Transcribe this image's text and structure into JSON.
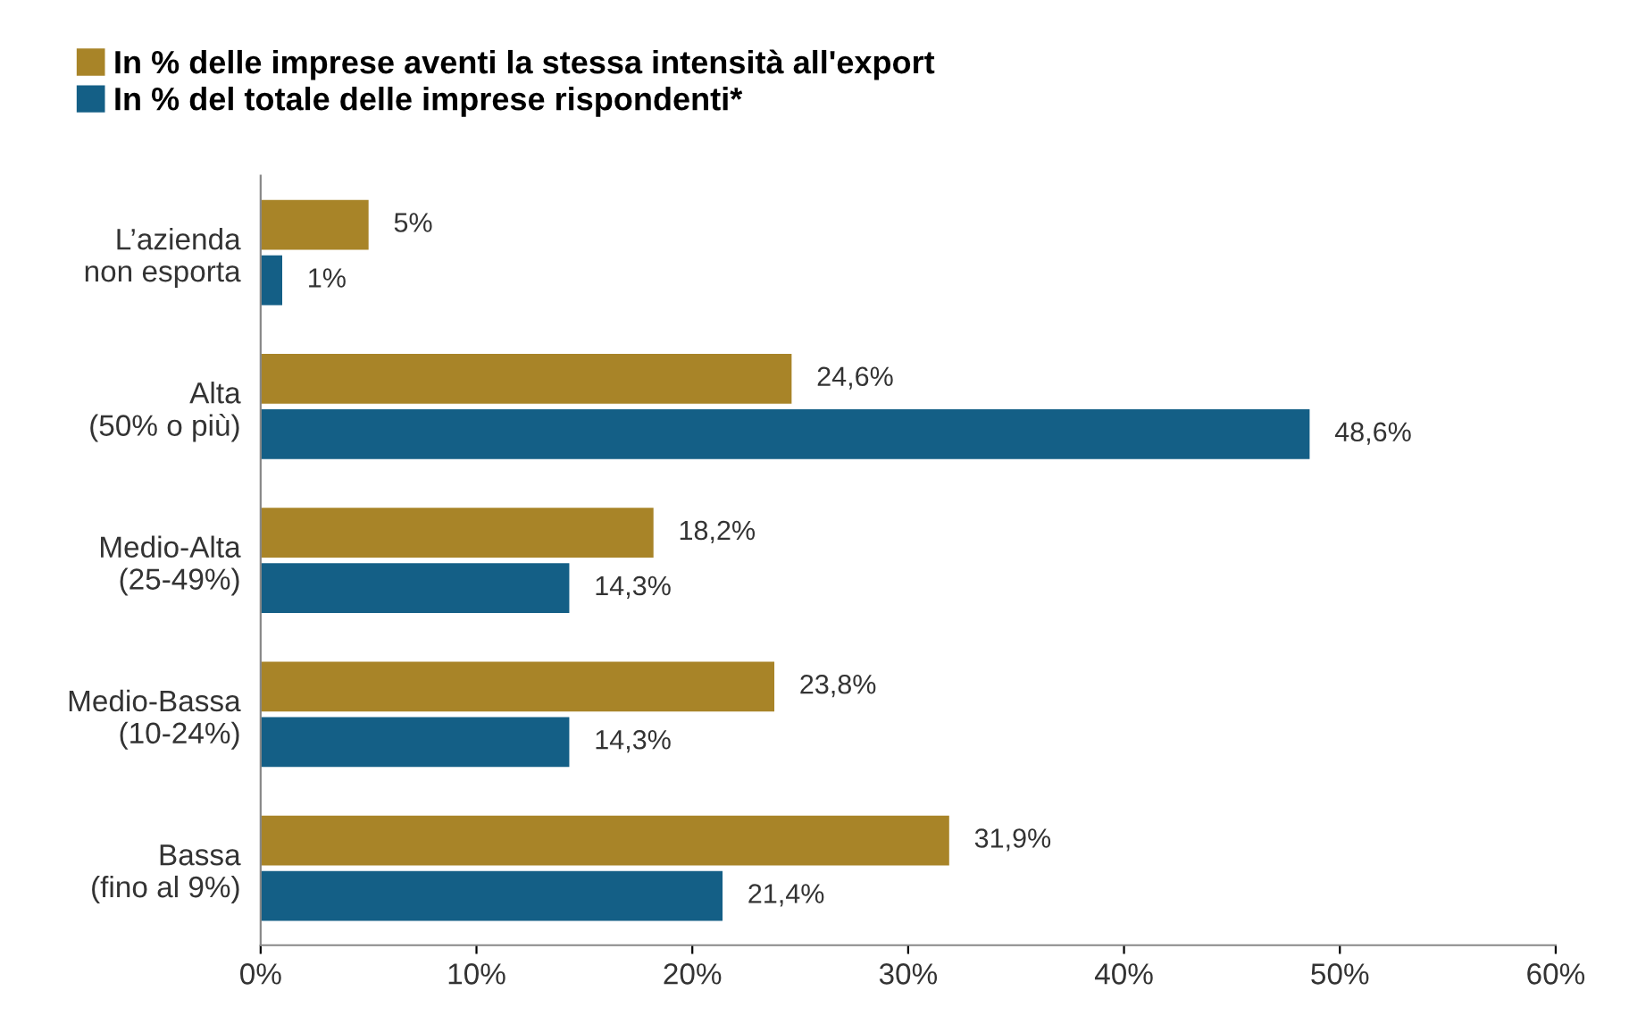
{
  "chart_data": {
    "type": "bar",
    "orientation": "horizontal",
    "categories": [
      "L’azienda\nnon esporta",
      "Alta\n(50% o più)",
      "Medio-Alta\n(25-49%)",
      "Medio-Bassa\n(10-24%)",
      "Bassa\n(fino al 9%)"
    ],
    "series": [
      {
        "name": "In % delle imprese aventi la stessa intensità all'export",
        "color": "#a88428",
        "values": [
          5,
          24.6,
          18.2,
          23.8,
          31.9
        ],
        "value_labels": [
          "5%",
          "24,6%",
          "18,2%",
          "23,8%",
          "31,9%"
        ]
      },
      {
        "name": "In % del totale delle imprese rispondenti*",
        "color": "#145f86",
        "values": [
          1,
          48.6,
          14.3,
          14.3,
          21.4
        ],
        "value_labels": [
          "1%",
          "48,6%",
          "14,3%",
          "14,3%",
          "21,4%"
        ]
      }
    ],
    "xlim": [
      0,
      60
    ],
    "xticks": [
      {
        "value": 0,
        "label": "0%"
      },
      {
        "value": 10,
        "label": "10%"
      },
      {
        "value": 20,
        "label": "20%"
      },
      {
        "value": 30,
        "label": "30%"
      },
      {
        "value": 40,
        "label": "40%"
      },
      {
        "value": 50,
        "label": "50%"
      },
      {
        "value": 60,
        "label": "60%"
      }
    ],
    "grid": false,
    "legend": "top left"
  }
}
